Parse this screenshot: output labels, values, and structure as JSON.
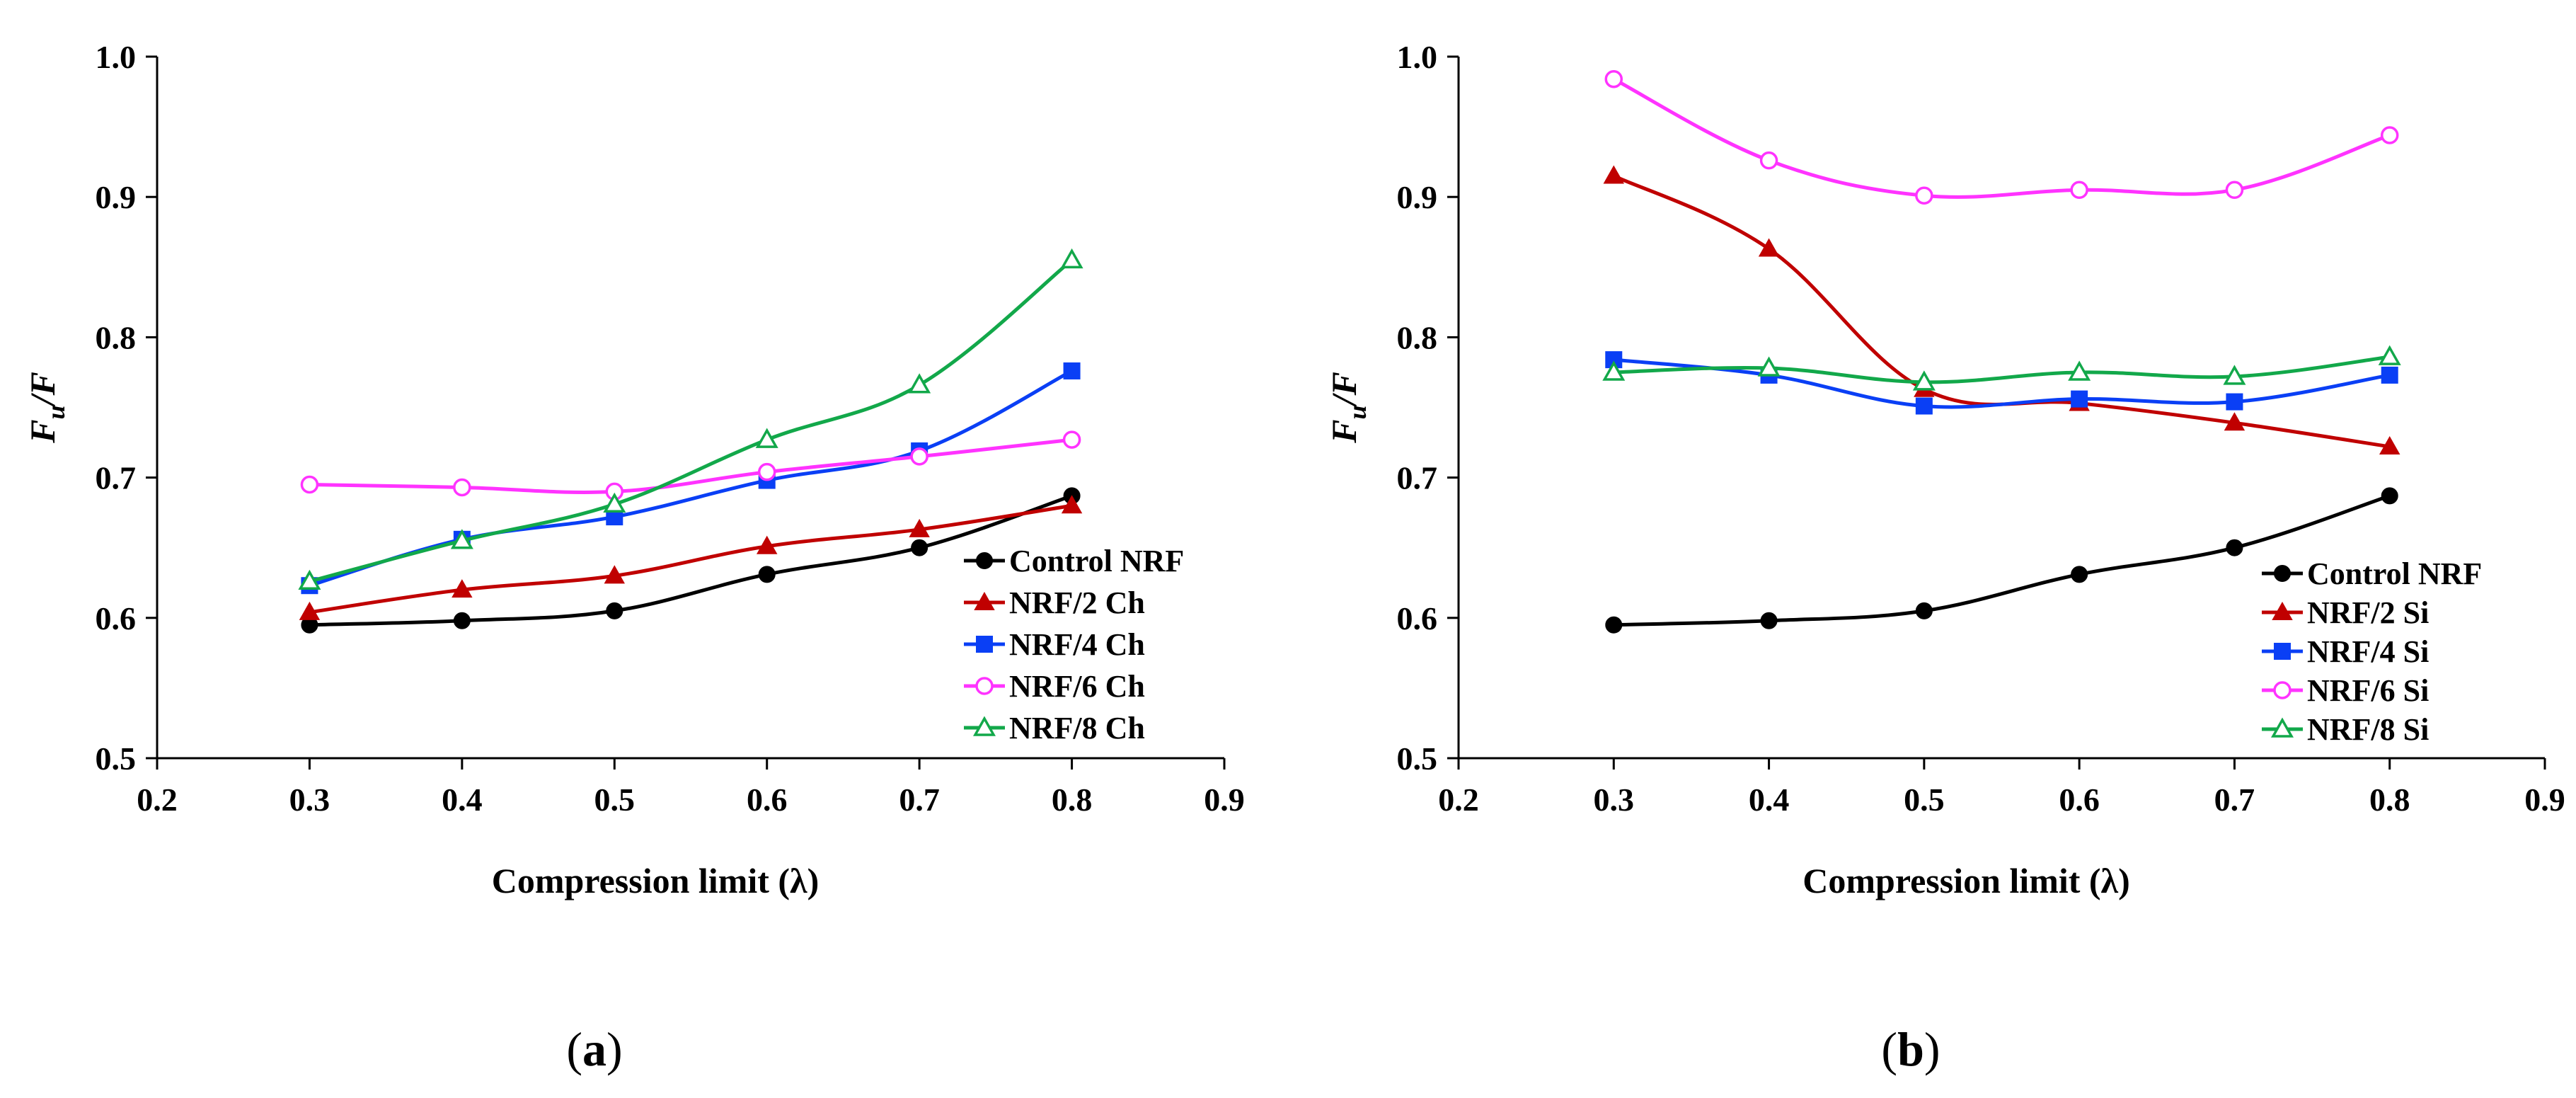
{
  "chart_data": [
    {
      "type": "line",
      "panel_label": "(a)",
      "caption_open": "(",
      "caption_letter": "a",
      "caption_close": ")",
      "xlabel": "Compression limit (λ)",
      "ylabel_main": "F",
      "ylabel_sub": "u",
      "ylabel_rest": "/F",
      "xlim": [
        0.2,
        0.9
      ],
      "ylim": [
        0.5,
        1.0
      ],
      "xticks": [
        "0.2",
        "0.3",
        "0.4",
        "0.5",
        "0.6",
        "0.7",
        "0.8",
        "0.9"
      ],
      "yticks": [
        "0.5",
        "0.6",
        "0.7",
        "0.8",
        "0.9",
        "1.0"
      ],
      "legend_position": "bottom-right",
      "x": [
        0.3,
        0.4,
        0.5,
        0.6,
        0.7,
        0.8
      ],
      "series": [
        {
          "name": "Control NRF",
          "color": "#000000",
          "marker": "circle-filled",
          "values": [
            0.595,
            0.598,
            0.605,
            0.631,
            0.65,
            0.687
          ]
        },
        {
          "name": "NRF/2 Ch",
          "color": "#c00000",
          "marker": "triangle-filled",
          "values": [
            0.604,
            0.62,
            0.63,
            0.651,
            0.663,
            0.68
          ]
        },
        {
          "name": "NRF/4 Ch",
          "color": "#0a3ff5",
          "marker": "square-filled",
          "values": [
            0.623,
            0.656,
            0.672,
            0.698,
            0.719,
            0.776
          ]
        },
        {
          "name": "NRF/6 Ch",
          "color": "#ff33ff",
          "marker": "circle-open",
          "values": [
            0.695,
            0.693,
            0.69,
            0.704,
            0.715,
            0.727
          ]
        },
        {
          "name": "NRF/8 Ch",
          "color": "#12a84a",
          "marker": "triangle-open",
          "values": [
            0.626,
            0.655,
            0.681,
            0.727,
            0.766,
            0.855
          ]
        }
      ]
    },
    {
      "type": "line",
      "panel_label": "(b)",
      "caption_open": "(",
      "caption_letter": "b",
      "caption_close": ")",
      "xlabel": "Compression limit (λ)",
      "ylabel_main": "F",
      "ylabel_sub": "u",
      "ylabel_rest": "/F",
      "xlim": [
        0.2,
        0.9
      ],
      "ylim": [
        0.5,
        1.0
      ],
      "xticks": [
        "0.2",
        "0.3",
        "0.4",
        "0.5",
        "0.6",
        "0.7",
        "0.8",
        "0.9"
      ],
      "yticks": [
        "0.5",
        "0.6",
        "0.7",
        "0.8",
        "0.9",
        "1.0"
      ],
      "legend_position": "bottom-right",
      "x": [
        0.3,
        0.4,
        0.5,
        0.6,
        0.7,
        0.8
      ],
      "series": [
        {
          "name": "Control NRF",
          "color": "#000000",
          "marker": "circle-filled",
          "values": [
            0.595,
            0.598,
            0.605,
            0.631,
            0.65,
            0.687
          ]
        },
        {
          "name": "NRF/2 Si",
          "color": "#c00000",
          "marker": "triangle-filled",
          "values": [
            0.915,
            0.863,
            0.763,
            0.753,
            0.739,
            0.722
          ]
        },
        {
          "name": "NRF/4 Si",
          "color": "#0a3ff5",
          "marker": "square-filled",
          "values": [
            0.784,
            0.773,
            0.751,
            0.756,
            0.754,
            0.773
          ]
        },
        {
          "name": "NRF/6 Si",
          "color": "#ff33ff",
          "marker": "circle-open",
          "values": [
            0.984,
            0.926,
            0.901,
            0.905,
            0.905,
            0.944
          ]
        },
        {
          "name": "NRF/8 Si",
          "color": "#12a84a",
          "marker": "triangle-open",
          "values": [
            0.775,
            0.778,
            0.768,
            0.775,
            0.772,
            0.786
          ]
        }
      ]
    }
  ]
}
